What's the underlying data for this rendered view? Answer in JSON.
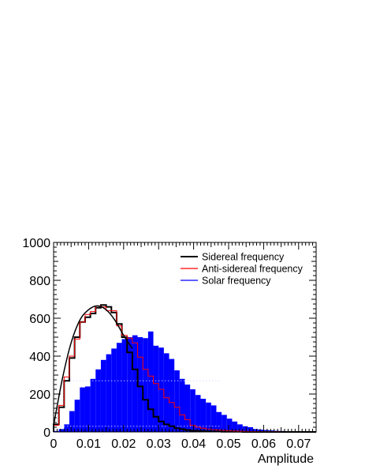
{
  "chart_data": {
    "type": "bar",
    "xlabel": "Amplitude",
    "ylabel": "",
    "xlim": [
      0,
      0.075
    ],
    "ylim": [
      0,
      1000
    ],
    "bin_width": 0.0015,
    "x_ticks": [
      {
        "value": 0,
        "label": "0"
      },
      {
        "value": 0.01,
        "label": "0.01"
      },
      {
        "value": 0.02,
        "label": "0.02"
      },
      {
        "value": 0.03,
        "label": "0.03"
      },
      {
        "value": 0.04,
        "label": "0.04"
      },
      {
        "value": 0.05,
        "label": "0.05"
      },
      {
        "value": 0.06,
        "label": "0.06"
      },
      {
        "value": 0.07,
        "label": "0.07"
      }
    ],
    "y_ticks": [
      {
        "value": 0,
        "label": "0"
      },
      {
        "value": 200,
        "label": "200"
      },
      {
        "value": 400,
        "label": "400"
      },
      {
        "value": 600,
        "label": "600"
      },
      {
        "value": 800,
        "label": "800"
      },
      {
        "value": 1000,
        "label": "1000"
      }
    ],
    "legend_position": "top-right",
    "series": [
      {
        "name": "Solar frequency",
        "style": "filled",
        "color": "#0000ff",
        "values": [
          5,
          15,
          40,
          110,
          170,
          235,
          240,
          280,
          330,
          380,
          410,
          440,
          470,
          490,
          500,
          510,
          500,
          495,
          530,
          455,
          445,
          415,
          385,
          325,
          280,
          250,
          225,
          195,
          175,
          155,
          140,
          105,
          90,
          70,
          55,
          40,
          30,
          25,
          15,
          12,
          10,
          8,
          6,
          5,
          4,
          3,
          3,
          2,
          2,
          1
        ]
      },
      {
        "name": "Sidereal frequency",
        "style": "step",
        "color": "#000000",
        "values": [
          40,
          130,
          270,
          390,
          500,
          580,
          605,
          625,
          655,
          670,
          660,
          630,
          570,
          500,
          420,
          330,
          240,
          170,
          120,
          80,
          55,
          40,
          30,
          20,
          15,
          10,
          7,
          5,
          4,
          3,
          2,
          2,
          1,
          1,
          1,
          1,
          0,
          0,
          0,
          0,
          0,
          0,
          0,
          0,
          0,
          0,
          0,
          0,
          0,
          0
        ]
      },
      {
        "name": "Anti-sidereal frequency",
        "style": "step",
        "color": "#ff0000",
        "values": [
          35,
          140,
          290,
          400,
          490,
          580,
          620,
          635,
          665,
          660,
          640,
          640,
          560,
          510,
          495,
          470,
          395,
          330,
          295,
          255,
          225,
          180,
          155,
          130,
          90,
          65,
          35,
          25,
          20,
          15,
          12,
          10,
          8,
          6,
          5,
          4,
          3,
          2,
          2,
          1,
          1,
          1,
          1,
          0,
          0,
          0,
          0,
          0,
          0,
          0
        ]
      }
    ],
    "fit_curve": {
      "color": "#000000",
      "x": [
        0,
        0.0025,
        0.005,
        0.0075,
        0.01,
        0.0125,
        0.015,
        0.0175,
        0.02,
        0.0225
      ],
      "y": [
        35,
        280,
        470,
        590,
        645,
        665,
        645,
        590,
        510,
        440
      ]
    }
  }
}
